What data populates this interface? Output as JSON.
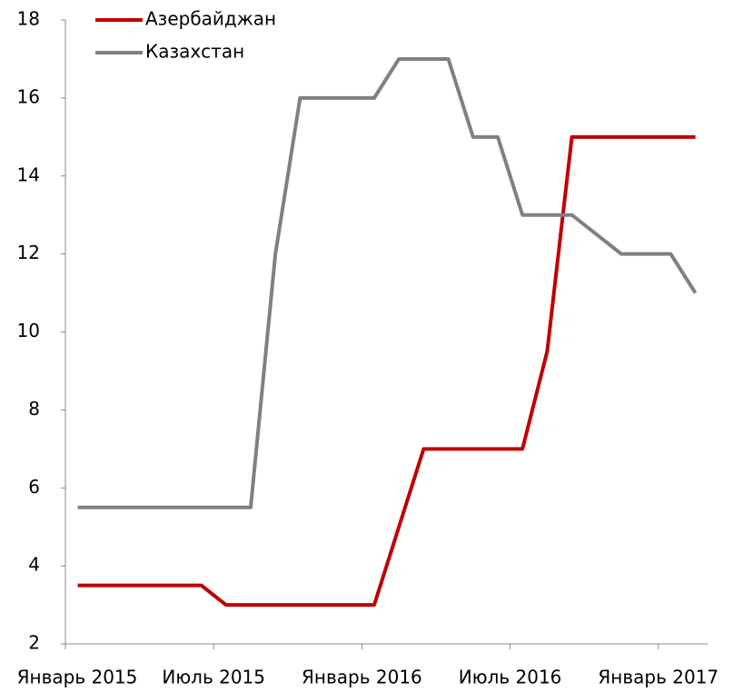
{
  "chart_data": {
    "type": "line",
    "categories": [
      "Январь 2015",
      null,
      null,
      null,
      null,
      null,
      "Июль 2015",
      null,
      null,
      null,
      null,
      null,
      "Январь 2016",
      null,
      null,
      null,
      null,
      null,
      "Июль 2016",
      null,
      null,
      null,
      null,
      null,
      "Январь 2017",
      null
    ],
    "series": [
      {
        "name": "Азербайджан",
        "color": "#c00000",
        "values": [
          3.5,
          3.5,
          3.5,
          3.5,
          3.5,
          3.5,
          3,
          3,
          3,
          3,
          3,
          3,
          3,
          5,
          7,
          7,
          7,
          7,
          7,
          9.5,
          15,
          15,
          15,
          15,
          15,
          15
        ]
      },
      {
        "name": "Казахстан",
        "color": "#7f8084",
        "values": [
          5.5,
          5.5,
          5.5,
          5.5,
          5.5,
          5.5,
          5.5,
          5.5,
          12,
          16,
          16,
          16,
          16,
          17,
          17,
          17,
          15,
          15,
          13,
          13,
          13,
          12.5,
          12,
          12,
          12,
          11
        ]
      }
    ],
    "ylim": [
      2,
      18
    ],
    "yticks": [
      2,
      4,
      6,
      8,
      10,
      12,
      14,
      16,
      18
    ],
    "legend": "top-left"
  }
}
